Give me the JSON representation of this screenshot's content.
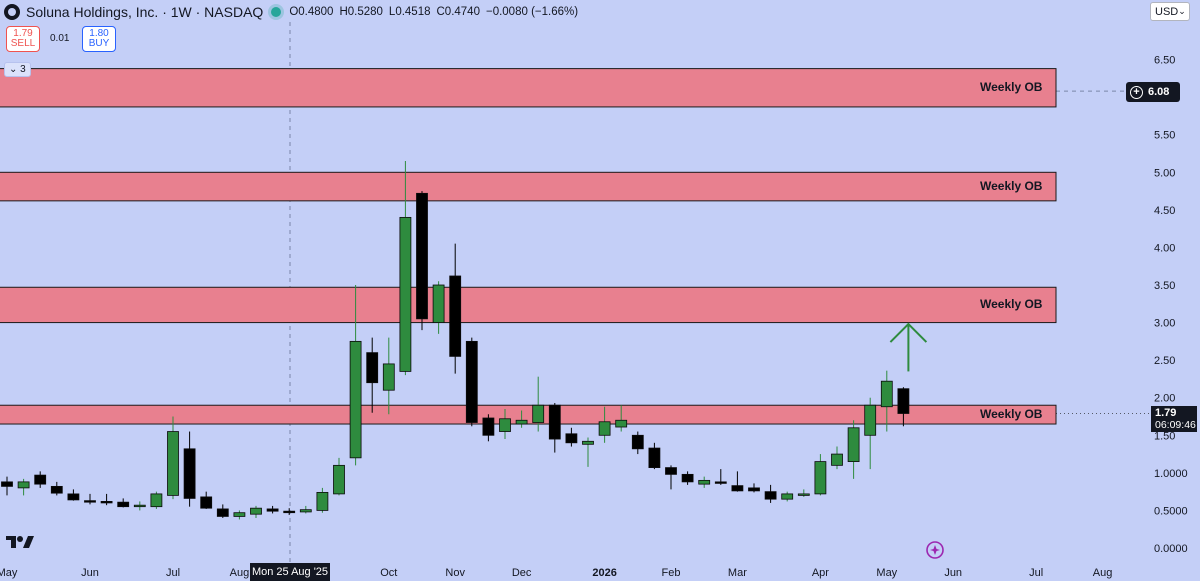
{
  "header": {
    "symbol_title": "Soluna Holdings, Inc. · 1W · NASDAQ",
    "open": "O0.4800",
    "high": "H0.5280",
    "low": "L0.4518",
    "close": "C0.4740",
    "change": "−0.0080 (−1.66%)"
  },
  "trade": {
    "sell_price": "1.79",
    "sell_label": "SELL",
    "buy_price": "1.80",
    "buy_label": "BUY",
    "spread": "0.01"
  },
  "indicators_count": "3",
  "currency": "USD",
  "price_tags": {
    "crosshair_price": "6.08",
    "last_price": "1.79",
    "countdown": "06:09:46",
    "crosshair_date": "Mon 25 Aug '25"
  },
  "colors": {
    "background": "#c4cff7",
    "up_candle": "#2e8b3e",
    "down_candle": "#000000",
    "order_block_fill": "#e8808f",
    "arrow": "#2e8b3e"
  },
  "chart_data": {
    "type": "candlestick",
    "interval": "1W",
    "y_axis": {
      "position": "right",
      "range": [
        -0.05,
        7.0
      ],
      "ticks": [
        "0.0000",
        "0.5000",
        "1.0000",
        "1.50",
        "2.00",
        "2.50",
        "3.00",
        "3.50",
        "4.00",
        "4.50",
        "5.00",
        "5.50",
        "6.00",
        "6.50"
      ]
    },
    "x_axis": {
      "labels": [
        {
          "text": "May",
          "week": 0
        },
        {
          "text": "Jun",
          "week": 5
        },
        {
          "text": "Jul",
          "week": 10
        },
        {
          "text": "Aug",
          "week": 14
        },
        {
          "text": "Oct",
          "week": 23
        },
        {
          "text": "Nov",
          "week": 27
        },
        {
          "text": "Dec",
          "week": 31
        },
        {
          "text": "2026",
          "week": 36,
          "bold": true
        },
        {
          "text": "Feb",
          "week": 40
        },
        {
          "text": "Mar",
          "week": 44
        },
        {
          "text": "Apr",
          "week": 49
        },
        {
          "text": "May",
          "week": 53
        },
        {
          "text": "Jun",
          "week": 57
        },
        {
          "text": "Jul",
          "week": 62
        },
        {
          "text": "Aug",
          "week": 66
        }
      ]
    },
    "candles": [
      {
        "o": 0.88,
        "h": 0.95,
        "l": 0.7,
        "c": 0.82
      },
      {
        "o": 0.8,
        "h": 0.92,
        "l": 0.7,
        "c": 0.88
      },
      {
        "o": 0.97,
        "h": 1.02,
        "l": 0.8,
        "c": 0.85
      },
      {
        "o": 0.82,
        "h": 0.88,
        "l": 0.7,
        "c": 0.73
      },
      {
        "o": 0.72,
        "h": 0.78,
        "l": 0.63,
        "c": 0.64
      },
      {
        "o": 0.63,
        "h": 0.72,
        "l": 0.58,
        "c": 0.61
      },
      {
        "o": 0.62,
        "h": 0.72,
        "l": 0.57,
        "c": 0.6
      },
      {
        "o": 0.61,
        "h": 0.66,
        "l": 0.54,
        "c": 0.55
      },
      {
        "o": 0.55,
        "h": 0.62,
        "l": 0.5,
        "c": 0.57
      },
      {
        "o": 0.55,
        "h": 0.75,
        "l": 0.52,
        "c": 0.72
      },
      {
        "o": 0.7,
        "h": 1.75,
        "l": 0.65,
        "c": 1.55
      },
      {
        "o": 1.32,
        "h": 1.55,
        "l": 0.55,
        "c": 0.66
      },
      {
        "o": 0.68,
        "h": 0.75,
        "l": 0.52,
        "c": 0.53
      },
      {
        "o": 0.52,
        "h": 0.58,
        "l": 0.4,
        "c": 0.42
      },
      {
        "o": 0.42,
        "h": 0.5,
        "l": 0.38,
        "c": 0.47
      },
      {
        "o": 0.45,
        "h": 0.56,
        "l": 0.4,
        "c": 0.53
      },
      {
        "o": 0.52,
        "h": 0.56,
        "l": 0.46,
        "c": 0.49
      },
      {
        "o": 0.49,
        "h": 0.53,
        "l": 0.44,
        "c": 0.48
      },
      {
        "o": 0.48,
        "h": 0.56,
        "l": 0.46,
        "c": 0.51
      },
      {
        "o": 0.5,
        "h": 0.8,
        "l": 0.47,
        "c": 0.74
      },
      {
        "o": 0.72,
        "h": 1.2,
        "l": 0.7,
        "c": 1.1
      },
      {
        "o": 1.2,
        "h": 3.5,
        "l": 1.1,
        "c": 2.75
      },
      {
        "o": 2.6,
        "h": 2.8,
        "l": 1.8,
        "c": 2.2
      },
      {
        "o": 2.1,
        "h": 2.8,
        "l": 1.78,
        "c": 2.45
      },
      {
        "o": 2.35,
        "h": 5.15,
        "l": 2.3,
        "c": 4.4
      },
      {
        "o": 4.72,
        "h": 4.75,
        "l": 2.9,
        "c": 3.05
      },
      {
        "o": 3.0,
        "h": 3.55,
        "l": 2.85,
        "c": 3.5
      },
      {
        "o": 3.62,
        "h": 4.05,
        "l": 2.32,
        "c": 2.55
      },
      {
        "o": 2.75,
        "h": 2.8,
        "l": 1.62,
        "c": 1.67
      },
      {
        "o": 1.73,
        "h": 1.78,
        "l": 1.42,
        "c": 1.5
      },
      {
        "o": 1.55,
        "h": 1.85,
        "l": 1.45,
        "c": 1.72
      },
      {
        "o": 1.65,
        "h": 1.83,
        "l": 1.6,
        "c": 1.7
      },
      {
        "o": 1.67,
        "h": 2.28,
        "l": 1.55,
        "c": 1.9
      },
      {
        "o": 1.9,
        "h": 1.93,
        "l": 1.27,
        "c": 1.45
      },
      {
        "o": 1.52,
        "h": 1.6,
        "l": 1.35,
        "c": 1.4
      },
      {
        "o": 1.38,
        "h": 1.47,
        "l": 1.08,
        "c": 1.42
      },
      {
        "o": 1.5,
        "h": 1.88,
        "l": 1.4,
        "c": 1.68
      },
      {
        "o": 1.61,
        "h": 1.9,
        "l": 1.55,
        "c": 1.7
      },
      {
        "o": 1.5,
        "h": 1.55,
        "l": 1.25,
        "c": 1.32
      },
      {
        "o": 1.33,
        "h": 1.4,
        "l": 1.05,
        "c": 1.07
      },
      {
        "o": 1.07,
        "h": 1.1,
        "l": 0.78,
        "c": 0.98
      },
      {
        "o": 0.98,
        "h": 1.02,
        "l": 0.84,
        "c": 0.88
      },
      {
        "o": 0.85,
        "h": 0.95,
        "l": 0.8,
        "c": 0.9
      },
      {
        "o": 0.88,
        "h": 1.05,
        "l": 0.84,
        "c": 0.86
      },
      {
        "o": 0.83,
        "h": 1.02,
        "l": 0.75,
        "c": 0.76
      },
      {
        "o": 0.8,
        "h": 0.86,
        "l": 0.74,
        "c": 0.76
      },
      {
        "o": 0.75,
        "h": 0.84,
        "l": 0.6,
        "c": 0.65
      },
      {
        "o": 0.65,
        "h": 0.75,
        "l": 0.62,
        "c": 0.72
      },
      {
        "o": 0.7,
        "h": 0.78,
        "l": 0.68,
        "c": 0.72
      },
      {
        "o": 0.72,
        "h": 1.25,
        "l": 0.7,
        "c": 1.15
      },
      {
        "o": 1.1,
        "h": 1.35,
        "l": 1.05,
        "c": 1.25
      },
      {
        "o": 1.15,
        "h": 1.7,
        "l": 0.92,
        "c": 1.6
      },
      {
        "o": 1.5,
        "h": 2.0,
        "l": 1.05,
        "c": 1.9
      },
      {
        "o": 1.88,
        "h": 2.36,
        "l": 1.55,
        "c": 2.22
      },
      {
        "o": 2.12,
        "h": 2.14,
        "l": 1.62,
        "c": 1.79
      }
    ],
    "order_blocks": [
      {
        "label": "Weekly OB",
        "low": 5.87,
        "high": 6.38
      },
      {
        "label": "Weekly OB",
        "low": 4.62,
        "high": 5.0
      },
      {
        "label": "Weekly OB",
        "low": 3.0,
        "high": 3.47
      },
      {
        "label": "Weekly OB",
        "low": 1.65,
        "high": 1.9
      }
    ],
    "annotations": [
      {
        "type": "arrow-up",
        "color": "green",
        "from": 2.35,
        "to": 2.98,
        "week": 54
      }
    ],
    "last_price": 1.79,
    "crosshair_price": 6.08
  }
}
